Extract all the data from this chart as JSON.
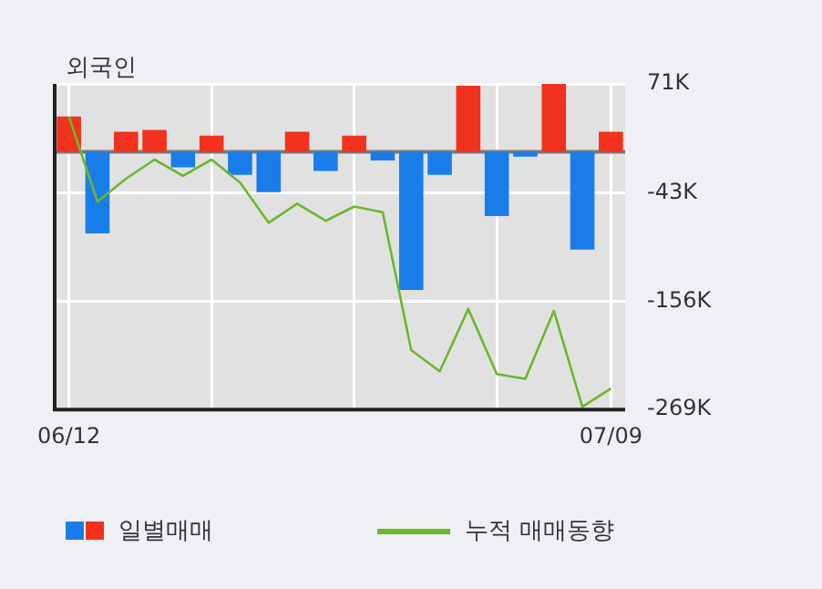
{
  "chart_data": {
    "type": "bar",
    "title": "외국인",
    "categories": [
      "06/12",
      null,
      null,
      null,
      null,
      null,
      null,
      null,
      null,
      null,
      null,
      null,
      null,
      null,
      null,
      null,
      null,
      null,
      null,
      "07/09"
    ],
    "series": [
      {
        "name": "일별매매",
        "colors": [
          "#f0321e",
          "#1a7ce8",
          "#f0321e",
          "#f0321e",
          "#1a7ce8",
          "#f0321e",
          "#1a7ce8",
          "#1a7ce8",
          "#f0321e",
          "#1a7ce8",
          "#f0321e",
          "#1a7ce8",
          "#1a7ce8",
          "#1a7ce8",
          "#f0321e",
          "#1a7ce8",
          "#1a7ce8",
          "#f0321e",
          "#1a7ce8",
          "#f0321e"
        ],
        "values": [
          37,
          -85,
          21,
          23,
          -16,
          17,
          -24,
          -42,
          21,
          -20,
          17,
          -9,
          -144,
          -24,
          69,
          -67,
          -5,
          71,
          -102,
          21
        ]
      },
      {
        "name": "누적 매매동향",
        "type": "line",
        "color": "#6ab82c",
        "values": [
          37,
          -52,
          -28,
          -8,
          -25,
          -8,
          -32,
          -74,
          -54,
          -72,
          -57,
          -63,
          -207,
          -229,
          -164,
          -232,
          -237,
          -166,
          -266,
          -247
        ]
      }
    ],
    "ylim": [
      -269,
      71
    ],
    "yticks": [
      {
        "value": 71,
        "label": "71K"
      },
      {
        "value": -43,
        "label": "-43K"
      },
      {
        "value": -156,
        "label": "-156K"
      },
      {
        "value": -269,
        "label": "-269K"
      }
    ],
    "grid": true,
    "legend": "bottom"
  }
}
